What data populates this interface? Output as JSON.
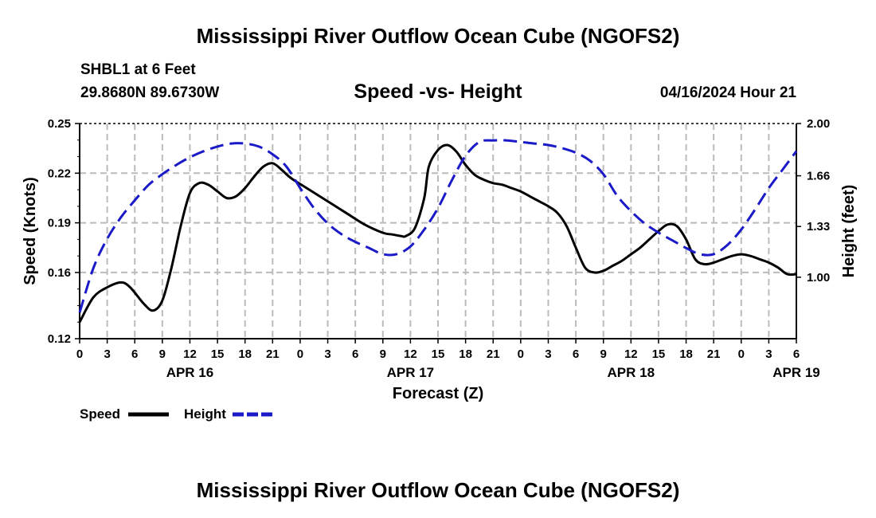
{
  "header": {
    "title": "Mississippi River Outflow Ocean Cube (NGOFS2)",
    "station": "SHBL1 at 6 Feet",
    "coords": "29.8680N  89.6730W",
    "subtitle": "Speed -vs- Height",
    "datetime": "04/16/2024 Hour 21"
  },
  "footer": {
    "title": "Mississippi River Outflow Ocean Cube (NGOFS2)"
  },
  "colors": {
    "speed": "#000000",
    "height": "#1a1ac8",
    "grid": "#bbbbbb"
  },
  "chart_data": {
    "type": "line",
    "title": "Speed -vs- Height",
    "xlabel": "Forecast (Z)",
    "ylabel": "Speed (Knots)",
    "y2label": "Height (feet)",
    "x_unit": "hours from APR 16 00Z",
    "xlim": [
      0,
      78
    ],
    "ylim": [
      0.12,
      0.25
    ],
    "y2lim": [
      0.6,
      2.0
    ],
    "x_ticks": [
      0,
      3,
      6,
      9,
      12,
      15,
      18,
      21,
      24,
      27,
      30,
      33,
      36,
      39,
      42,
      45,
      48,
      51,
      54,
      57,
      60,
      63,
      66,
      69,
      72,
      75,
      78
    ],
    "x_tick_labels": [
      "0",
      "3",
      "6",
      "9",
      "12",
      "15",
      "18",
      "21",
      "0",
      "3",
      "6",
      "9",
      "12",
      "15",
      "18",
      "21",
      "0",
      "3",
      "6",
      "9",
      "12",
      "15",
      "18",
      "21",
      "0",
      "3",
      "6"
    ],
    "date_labels": [
      {
        "x": 12,
        "label": "APR 16"
      },
      {
        "x": 36,
        "label": "APR 17"
      },
      {
        "x": 60,
        "label": "APR 18"
      },
      {
        "x": 78,
        "label": "APR 19"
      }
    ],
    "y_ticks": [
      0.12,
      0.16,
      0.19,
      0.22,
      0.25
    ],
    "y_tick_labels": [
      "0.12",
      "0.16",
      "0.19",
      "0.22",
      "0.25"
    ],
    "y2_ticks": [
      1.0,
      1.33,
      1.66,
      2.0
    ],
    "y2_tick_labels": [
      "1.00",
      "1.33",
      "1.66",
      "2.00"
    ],
    "grid": true,
    "legend_position": "bottom-left",
    "series": [
      {
        "name": "Speed",
        "axis": "left",
        "style": "solid",
        "x": [
          0,
          1.5,
          3,
          4.5,
          5.5,
          7,
          8,
          9,
          10,
          11,
          12,
          13,
          14,
          15,
          16,
          17,
          18,
          19,
          20,
          21,
          22,
          23,
          25,
          27,
          29,
          31,
          33,
          34,
          35,
          35.5,
          36.5,
          37.5,
          38,
          39,
          40,
          41,
          42,
          43,
          44,
          45,
          46,
          47,
          48,
          49,
          50,
          51,
          52,
          53,
          54,
          55,
          56,
          57,
          58,
          59,
          60,
          61,
          62,
          63,
          64,
          65,
          66,
          67,
          68,
          69,
          70,
          71,
          72,
          73,
          74,
          75,
          76,
          77,
          78
        ],
        "y": [
          0.13,
          0.145,
          0.151,
          0.154,
          0.151,
          0.141,
          0.137,
          0.143,
          0.163,
          0.188,
          0.208,
          0.214,
          0.213,
          0.209,
          0.205,
          0.206,
          0.211,
          0.218,
          0.224,
          0.226,
          0.222,
          0.217,
          0.21,
          0.203,
          0.196,
          0.189,
          0.184,
          0.183,
          0.182,
          0.182,
          0.187,
          0.205,
          0.224,
          0.234,
          0.237,
          0.233,
          0.225,
          0.219,
          0.216,
          0.214,
          0.213,
          0.211,
          0.209,
          0.206,
          0.203,
          0.2,
          0.196,
          0.188,
          0.175,
          0.163,
          0.16,
          0.161,
          0.164,
          0.167,
          0.171,
          0.175,
          0.18,
          0.185,
          0.189,
          0.188,
          0.18,
          0.168,
          0.165,
          0.166,
          0.168,
          0.17,
          0.171,
          0.17,
          0.168,
          0.166,
          0.163,
          0.159,
          0.159
        ]
      },
      {
        "name": "Height",
        "axis": "right",
        "style": "dashed",
        "x": [
          0,
          1.5,
          3,
          4.5,
          6,
          7.5,
          9,
          10.5,
          12,
          13.5,
          15,
          16.5,
          18,
          19.5,
          21,
          22.5,
          24,
          25.5,
          27,
          28.5,
          30,
          31.5,
          33,
          34.5,
          36,
          37.5,
          39,
          40.5,
          42,
          43.5,
          45,
          46.5,
          48,
          49.5,
          51,
          52.5,
          54,
          55.5,
          57,
          58.5,
          60,
          61.5,
          63,
          64.5,
          66,
          67.5,
          69,
          70.5,
          72,
          73.5,
          75,
          76.5,
          78
        ],
        "y": [
          0.77,
          1.06,
          1.25,
          1.39,
          1.5,
          1.6,
          1.67,
          1.73,
          1.78,
          1.82,
          1.85,
          1.87,
          1.87,
          1.85,
          1.8,
          1.72,
          1.58,
          1.45,
          1.35,
          1.28,
          1.23,
          1.19,
          1.15,
          1.15,
          1.2,
          1.31,
          1.45,
          1.63,
          1.79,
          1.88,
          1.89,
          1.89,
          1.88,
          1.87,
          1.86,
          1.84,
          1.81,
          1.76,
          1.67,
          1.53,
          1.43,
          1.35,
          1.29,
          1.24,
          1.19,
          1.15,
          1.15,
          1.21,
          1.31,
          1.44,
          1.58,
          1.7,
          1.82
        ]
      }
    ]
  },
  "legend": [
    {
      "label": "Speed"
    },
    {
      "label": "Height"
    }
  ]
}
